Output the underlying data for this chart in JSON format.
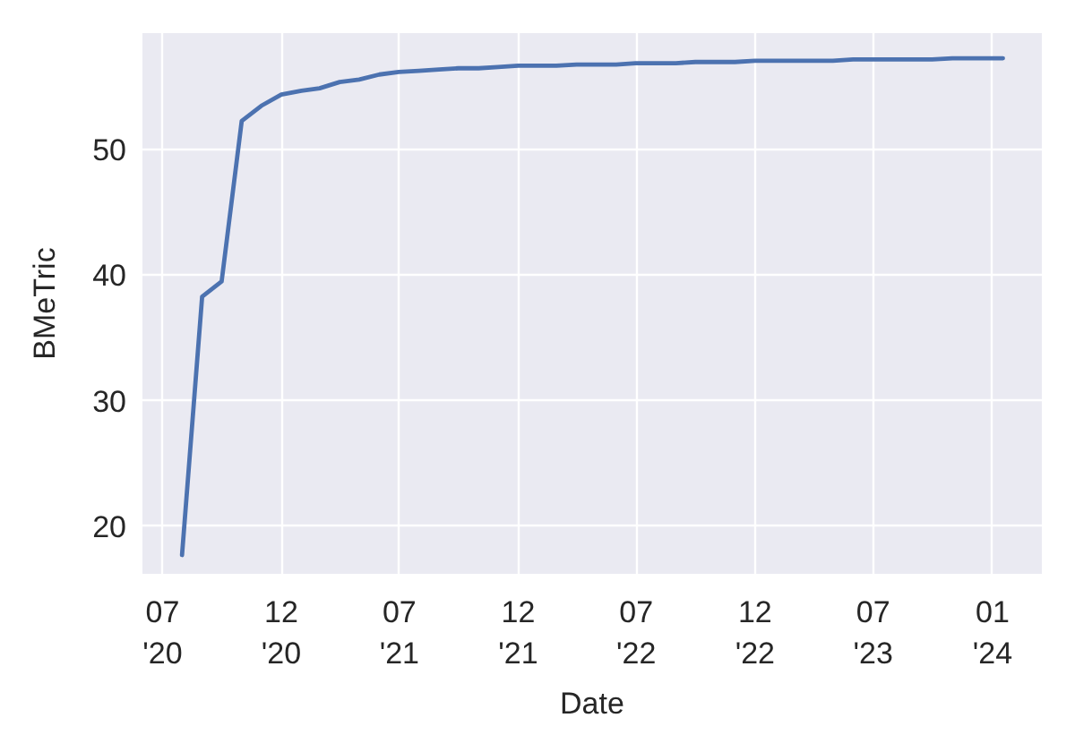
{
  "chart_data": {
    "type": "line",
    "xlabel": "Date",
    "ylabel": "BMeTric",
    "x": [
      "2020-07-31",
      "2020-08-31",
      "2020-09-30",
      "2020-10-31",
      "2020-11-30",
      "2020-12-31",
      "2021-01-31",
      "2021-02-28",
      "2021-03-31",
      "2021-04-30",
      "2021-05-31",
      "2021-06-30",
      "2021-07-31",
      "2021-08-31",
      "2021-09-30",
      "2021-10-31",
      "2021-11-30",
      "2021-12-31",
      "2022-01-31",
      "2022-02-28",
      "2022-03-31",
      "2022-04-30",
      "2022-05-31",
      "2022-06-30",
      "2022-07-31",
      "2022-08-31",
      "2022-09-30",
      "2022-10-31",
      "2022-11-30",
      "2022-12-31",
      "2023-01-31",
      "2023-02-28",
      "2023-03-31",
      "2023-04-30",
      "2023-05-31",
      "2023-06-30",
      "2023-07-31",
      "2023-08-31",
      "2023-09-30",
      "2023-10-31",
      "2023-11-30",
      "2023-12-31",
      "2024-01-17"
    ],
    "series": [
      {
        "color": "#4c72b0",
        "values": [
          17.7,
          38.3,
          39.5,
          52.3,
          53.5,
          54.4,
          54.7,
          54.9,
          55.4,
          55.6,
          56.0,
          56.2,
          56.3,
          56.4,
          56.5,
          56.5,
          56.6,
          56.7,
          56.7,
          56.7,
          56.8,
          56.8,
          56.8,
          56.9,
          56.9,
          56.9,
          57.0,
          57.0,
          57.0,
          57.1,
          57.1,
          57.1,
          57.1,
          57.1,
          57.2,
          57.2,
          57.2,
          57.2,
          57.2,
          57.3,
          57.3,
          57.3,
          57.3
        ]
      }
    ],
    "xlim": [
      "2020-05-31",
      "2024-03-17"
    ],
    "ylim": [
      16.2,
      59.3
    ],
    "xticks": [
      {
        "value": "2020-07-01",
        "label": "07\n'20"
      },
      {
        "value": "2020-12-31",
        "label": "12\n'20"
      },
      {
        "value": "2021-07-01",
        "label": "07\n'21"
      },
      {
        "value": "2021-12-31",
        "label": "12\n'21"
      },
      {
        "value": "2022-07-01",
        "label": "07\n'22"
      },
      {
        "value": "2022-12-31",
        "label": "12\n'22"
      },
      {
        "value": "2023-07-01",
        "label": "07\n'23"
      },
      {
        "value": "2024-01-01",
        "label": "01\n'24"
      }
    ],
    "yticks": [
      20,
      30,
      40,
      50
    ],
    "grid": true,
    "line_style": "solid"
  }
}
